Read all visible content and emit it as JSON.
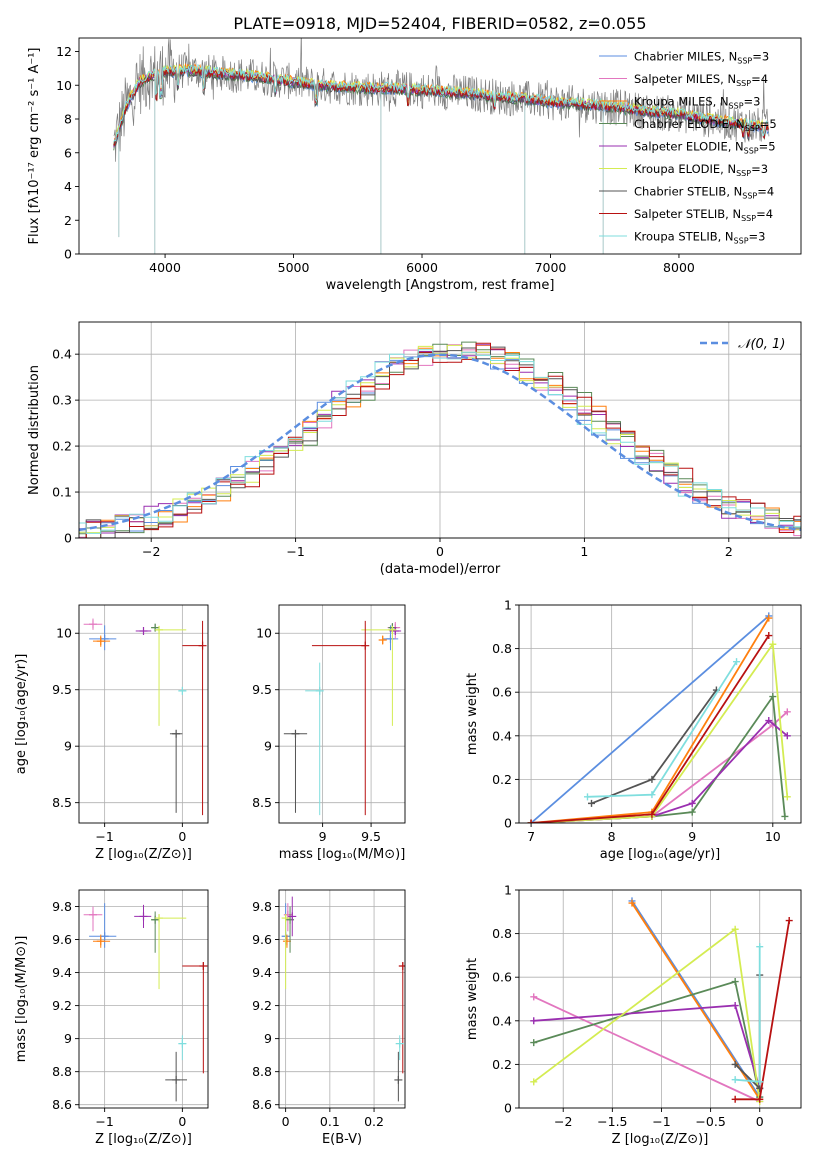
{
  "colors": {
    "chabrier_miles": "#5b8ee0",
    "salpeter_miles": "#e276bf",
    "kroupa_miles": "#ff7f0e",
    "chabrier_elodie": "#5a8a58",
    "salpeter_elodie": "#9a2fb0",
    "kroupa_elodie": "#d4ec52",
    "chabrier_stelib": "#545454",
    "salpeter_stelib": "#b81111",
    "kroupa_stelib": "#7fdede",
    "gray_spectrum": "#7f7f7f"
  },
  "chart_data": [
    {
      "id": "spectrum",
      "type": "line",
      "title": "PLATE=0918, MJD=52404, FIBERID=0582, z=0.055",
      "xlabel": "wavelength [Angstrom, rest frame]",
      "ylabel": "Flux [fλ10⁻¹⁷ erg cm⁻² s⁻¹ A⁻¹]",
      "xlim": [
        3330,
        8950
      ],
      "ylim": [
        0,
        12.8
      ],
      "xticks": [
        4000,
        5000,
        6000,
        7000,
        8000
      ],
      "yticks": [
        0,
        2,
        4,
        6,
        8,
        10,
        12
      ],
      "continuum": [
        [
          3600,
          6.4
        ],
        [
          3640,
          7.4
        ],
        [
          3700,
          8.8
        ],
        [
          3800,
          10.2
        ],
        [
          3900,
          10.6
        ],
        [
          4000,
          10.8
        ],
        [
          4200,
          10.9
        ],
        [
          4400,
          10.7
        ],
        [
          4600,
          10.6
        ],
        [
          4800,
          10.4
        ],
        [
          5000,
          10.2
        ],
        [
          5200,
          10.0
        ],
        [
          5400,
          9.9
        ],
        [
          5600,
          9.8
        ],
        [
          5800,
          9.8
        ],
        [
          6000,
          9.7
        ],
        [
          6200,
          9.6
        ],
        [
          6400,
          9.5
        ],
        [
          6600,
          9.3
        ],
        [
          6800,
          9.2
        ],
        [
          7000,
          9.0
        ],
        [
          7200,
          8.9
        ],
        [
          7400,
          8.8
        ],
        [
          7600,
          8.6
        ],
        [
          7800,
          8.4
        ],
        [
          8000,
          8.3
        ],
        [
          8200,
          8.0
        ],
        [
          8400,
          7.8
        ],
        [
          8600,
          7.6
        ],
        [
          8700,
          7.5
        ]
      ],
      "legend": [
        {
          "label": "Chabrier MILES, N",
          "sub": "SSP",
          "n": "=3",
          "color_key": "chabrier_miles"
        },
        {
          "label": "Salpeter MILES, N",
          "sub": "SSP",
          "n": "=4",
          "color_key": "salpeter_miles"
        },
        {
          "label": "Kroupa MILES, N",
          "sub": "SSP",
          "n": "=3",
          "color_key": "kroupa_miles"
        },
        {
          "label": "Chabrier ELODIE, N",
          "sub": "SSP",
          "n": "=5",
          "color_key": "chabrier_elodie"
        },
        {
          "label": "Salpeter ELODIE, N",
          "sub": "SSP",
          "n": "=5",
          "color_key": "salpeter_elodie"
        },
        {
          "label": "Kroupa ELODIE, N",
          "sub": "SSP",
          "n": "=3",
          "color_key": "kroupa_elodie"
        },
        {
          "label": "Chabrier STELIB, N",
          "sub": "SSP",
          "n": "=4",
          "color_key": "chabrier_stelib"
        },
        {
          "label": "Salpeter STELIB, N",
          "sub": "SSP",
          "n": "=4",
          "color_key": "salpeter_stelib"
        },
        {
          "label": "Kroupa STELIB, N",
          "sub": "SSP",
          "n": "=3",
          "color_key": "kroupa_stelib"
        }
      ]
    },
    {
      "id": "residuals",
      "type": "line",
      "xlabel": "(data-model)/error",
      "ylabel": "Normed distribution",
      "xlim": [
        -2.5,
        2.5
      ],
      "ylim": [
        0,
        0.47
      ],
      "xticks": [
        -2,
        -1,
        0,
        1,
        2
      ],
      "yticks": [
        0.0,
        0.1,
        0.2,
        0.3,
        0.4
      ],
      "legend": "𝒩(0, 1)",
      "gaussian": {
        "mean": 0,
        "sigma": 1
      }
    },
    {
      "id": "age_vs_Z",
      "type": "scatter",
      "xlabel": "Z [log₁₀(Z/Z⊙)]",
      "ylabel": "age  [log₁₀(age/yr)]",
      "xlim": [
        -1.33,
        0.33
      ],
      "ylim": [
        8.32,
        10.25
      ],
      "xticks": [
        -1,
        0
      ],
      "yticks": [
        8.5,
        9.0,
        9.5,
        10.0
      ],
      "points": [
        {
          "k": "chabrier_miles",
          "x": -1.0,
          "y": 9.95,
          "ex": [
            0.2,
            0.15
          ],
          "ey": [
            0.1,
            0.12
          ]
        },
        {
          "k": "salpeter_miles",
          "x": -1.15,
          "y": 10.08,
          "ex": [
            0.12,
            0.12
          ],
          "ey": [
            0.05,
            0.05
          ]
        },
        {
          "k": "kroupa_miles",
          "x": -1.05,
          "y": 9.93,
          "ex": [
            0.1,
            0.12
          ],
          "ey": [
            0.05,
            0.05
          ]
        },
        {
          "k": "chabrier_elodie",
          "x": -0.35,
          "y": 10.05,
          "ex": [
            0.05,
            0.05
          ],
          "ey": [
            0.03,
            0.03
          ]
        },
        {
          "k": "salpeter_elodie",
          "x": -0.5,
          "y": 10.02,
          "ex": [
            0.1,
            0.1
          ],
          "ey": [
            0.02,
            0.02
          ]
        },
        {
          "k": "kroupa_elodie",
          "x": -0.3,
          "y": 10.03,
          "ex": [
            0.02,
            0.35
          ],
          "ey": [
            0.85,
            0.0
          ]
        },
        {
          "k": "chabrier_stelib",
          "x": -0.08,
          "y": 9.11,
          "ex": [
            0.08,
            0.08
          ],
          "ey": [
            0.7,
            0.0
          ]
        },
        {
          "k": "salpeter_stelib",
          "x": 0.26,
          "y": 9.89,
          "ex": [
            0.26,
            0.0
          ],
          "ey": [
            1.5,
            0.22
          ]
        },
        {
          "k": "kroupa_stelib",
          "x": 0.0,
          "y": 9.49,
          "ex": [
            0.05,
            0.05
          ],
          "ey": [
            0.0,
            0.0
          ]
        }
      ]
    },
    {
      "id": "age_vs_mass",
      "type": "scatter",
      "xlabel": "mass [log₁₀(M/M⊙)]",
      "xlim": [
        8.55,
        9.85
      ],
      "ylim": [
        8.32,
        10.25
      ],
      "xticks": [
        9.0,
        9.5
      ],
      "yticks": [
        8.5,
        9.0,
        9.5,
        10.0
      ],
      "points": [
        {
          "k": "chabrier_miles",
          "x": 9.7,
          "y": 9.95,
          "ex": [
            0.08,
            0.08
          ],
          "ey": [
            0.1,
            0.12
          ]
        },
        {
          "k": "salpeter_miles",
          "x": 9.75,
          "y": 10.05,
          "ex": [
            0.08,
            0.05
          ],
          "ey": [
            0.1,
            0.05
          ]
        },
        {
          "k": "kroupa_miles",
          "x": 9.62,
          "y": 9.94,
          "ex": [
            0.04,
            0.04
          ],
          "ey": [
            0.04,
            0.04
          ]
        },
        {
          "k": "chabrier_elodie",
          "x": 9.72,
          "y": 10.05,
          "ex": [
            0.03,
            0.03
          ],
          "ey": [
            0.04,
            0.04
          ]
        },
        {
          "k": "salpeter_elodie",
          "x": 9.75,
          "y": 10.02,
          "ex": [
            0.06,
            0.06
          ],
          "ey": [
            0.02,
            0.02
          ]
        },
        {
          "k": "kroupa_elodie",
          "x": 9.72,
          "y": 10.03,
          "ex": [
            0.32,
            0.0
          ],
          "ey": [
            0.85,
            0.0
          ]
        },
        {
          "k": "chabrier_stelib",
          "x": 8.72,
          "y": 9.11,
          "ex": [
            0.12,
            0.12
          ],
          "ey": [
            0.7,
            0.0
          ]
        },
        {
          "k": "salpeter_stelib",
          "x": 9.44,
          "y": 9.89,
          "ex": [
            0.55,
            0.0
          ],
          "ey": [
            1.5,
            0.22
          ]
        },
        {
          "k": "kroupa_stelib",
          "x": 8.97,
          "y": 9.49,
          "ex": [
            0.15,
            0.0
          ],
          "ey": [
            1.1,
            0.25
          ]
        }
      ]
    },
    {
      "id": "massweight_vs_age",
      "type": "line",
      "xlabel": "age  [log₁₀(age/yr)]",
      "ylabel": "mass weight",
      "xlim": [
        6.85,
        10.35
      ],
      "ylim": [
        0,
        1.0
      ],
      "xticks": [
        7,
        8,
        9,
        10
      ],
      "yticks": [
        0.0,
        0.2,
        0.4,
        0.6,
        0.8,
        1.0
      ],
      "series": [
        {
          "k": "chabrier_miles",
          "x": [
            7.0,
            9.95
          ],
          "y": [
            0.0,
            0.95
          ]
        },
        {
          "k": "salpeter_miles",
          "x": [
            7.0,
            8.5,
            10.0,
            10.18
          ],
          "y": [
            0.0,
            0.03,
            0.45,
            0.51
          ]
        },
        {
          "k": "kroupa_miles",
          "x": [
            7.0,
            8.5,
            9.95
          ],
          "y": [
            0.0,
            0.05,
            0.94
          ]
        },
        {
          "k": "chabrier_elodie",
          "x": [
            7.0,
            8.5,
            9.0,
            10.0,
            10.15
          ],
          "y": [
            0.0,
            0.03,
            0.05,
            0.58,
            0.03
          ]
        },
        {
          "k": "salpeter_elodie",
          "x": [
            7.0,
            8.5,
            9.0,
            9.95,
            10.18
          ],
          "y": [
            0.0,
            0.03,
            0.09,
            0.47,
            0.4
          ]
        },
        {
          "k": "kroupa_elodie",
          "x": [
            7.0,
            8.5,
            10.0,
            10.18
          ],
          "y": [
            0.0,
            0.03,
            0.82,
            0.12
          ]
        },
        {
          "k": "chabrier_stelib",
          "x": [
            7.75,
            8.5,
            9.3
          ],
          "y": [
            0.09,
            0.2,
            0.61
          ]
        },
        {
          "k": "salpeter_stelib",
          "x": [
            7.0,
            8.5,
            9.95
          ],
          "y": [
            0.0,
            0.04,
            0.86
          ]
        },
        {
          "k": "kroupa_stelib",
          "x": [
            7.7,
            8.5,
            9.55
          ],
          "y": [
            0.12,
            0.13,
            0.74
          ]
        }
      ]
    },
    {
      "id": "mass_vs_Z",
      "type": "scatter",
      "xlabel": "Z [log₁₀(Z/Z⊙)]",
      "ylabel": "mass [log₁₀(M/M⊙)]",
      "xlim": [
        -1.33,
        0.33
      ],
      "ylim": [
        8.58,
        9.9
      ],
      "xticks": [
        -1,
        0
      ],
      "yticks": [
        8.6,
        8.8,
        9.0,
        9.2,
        9.4,
        9.6,
        9.8
      ],
      "points": [
        {
          "k": "chabrier_miles",
          "x": -1.0,
          "y": 9.62,
          "ex": [
            0.2,
            0.15
          ],
          "ey": [
            0.07,
            0.2
          ]
        },
        {
          "k": "salpeter_miles",
          "x": -1.15,
          "y": 9.75,
          "ex": [
            0.12,
            0.12
          ],
          "ey": [
            0.1,
            0.05
          ]
        },
        {
          "k": "kroupa_miles",
          "x": -1.05,
          "y": 9.59,
          "ex": [
            0.1,
            0.12
          ],
          "ey": [
            0.04,
            0.04
          ]
        },
        {
          "k": "chabrier_elodie",
          "x": -0.35,
          "y": 9.72,
          "ex": [
            0.05,
            0.05
          ],
          "ey": [
            0.2,
            0.05
          ]
        },
        {
          "k": "salpeter_elodie",
          "x": -0.5,
          "y": 9.74,
          "ex": [
            0.12,
            0.1
          ],
          "ey": [
            0.07,
            0.07
          ]
        },
        {
          "k": "kroupa_elodie",
          "x": -0.3,
          "y": 9.73,
          "ex": [
            0.02,
            0.35
          ],
          "ey": [
            0.43,
            0.0
          ]
        },
        {
          "k": "chabrier_stelib",
          "x": -0.08,
          "y": 8.75,
          "ex": [
            0.14,
            0.14
          ],
          "ey": [
            0.13,
            0.17
          ]
        },
        {
          "k": "salpeter_stelib",
          "x": 0.27,
          "y": 9.44,
          "ex": [
            0.27,
            0.0
          ],
          "ey": [
            0.65,
            0.02
          ]
        },
        {
          "k": "kroupa_stelib",
          "x": 0.0,
          "y": 8.97,
          "ex": [
            0.05,
            0.05
          ],
          "ey": [
            0.1,
            0.05
          ]
        }
      ]
    },
    {
      "id": "mass_vs_EBV",
      "type": "scatter",
      "xlabel": "E(B-V)",
      "xlim": [
        -0.015,
        0.27
      ],
      "ylim": [
        8.58,
        9.9
      ],
      "xticks": [
        0.0,
        0.1,
        0.2
      ],
      "yticks": [
        8.6,
        8.8,
        9.0,
        9.2,
        9.4,
        9.6,
        9.8
      ],
      "points": [
        {
          "k": "chabrier_miles",
          "x": 0.0,
          "y": 9.62,
          "ex": [
            0,
            0
          ],
          "ey": [
            0.05,
            0.2
          ]
        },
        {
          "k": "salpeter_miles",
          "x": 0.005,
          "y": 9.75,
          "ex": [
            0,
            0
          ],
          "ey": [
            0.1,
            0.07
          ]
        },
        {
          "k": "kroupa_miles",
          "x": 0.003,
          "y": 9.59,
          "ex": [
            0,
            0
          ],
          "ey": [
            0.04,
            0.04
          ]
        },
        {
          "k": "chabrier_elodie",
          "x": 0.01,
          "y": 9.72,
          "ex": [
            0,
            0
          ],
          "ey": [
            0.2,
            0.08
          ]
        },
        {
          "k": "salpeter_elodie",
          "x": 0.015,
          "y": 9.74,
          "ex": [
            0,
            0
          ],
          "ey": [
            0.12,
            0.12
          ]
        },
        {
          "k": "kroupa_elodie",
          "x": 0.0,
          "y": 9.73,
          "ex": [
            0,
            0
          ],
          "ey": [
            0.43,
            0.0
          ]
        },
        {
          "k": "chabrier_stelib",
          "x": 0.255,
          "y": 8.75,
          "ex": [
            0,
            0
          ],
          "ey": [
            0.13,
            0.17
          ]
        },
        {
          "k": "salpeter_stelib",
          "x": 0.265,
          "y": 9.44,
          "ex": [
            0,
            0
          ],
          "ey": [
            0.65,
            0.02
          ]
        },
        {
          "k": "kroupa_stelib",
          "x": 0.258,
          "y": 8.97,
          "ex": [
            0,
            0
          ],
          "ey": [
            0.1,
            0.05
          ]
        }
      ]
    },
    {
      "id": "massweight_vs_Z",
      "type": "line",
      "xlabel": "Z [log₁₀(Z/Z⊙)]",
      "ylabel": "mass weight",
      "xlim": [
        -2.45,
        0.42
      ],
      "ylim": [
        0,
        1.0
      ],
      "xticks": [
        -2.0,
        -1.5,
        -1.0,
        -0.5,
        0.0
      ],
      "yticks": [
        0.0,
        0.2,
        0.4,
        0.6,
        0.8,
        1.0
      ],
      "series": [
        {
          "k": "chabrier_miles",
          "x": [
            -1.3,
            0.0
          ],
          "y": [
            0.95,
            0.05
          ]
        },
        {
          "k": "salpeter_miles",
          "x": [
            -2.3,
            0.0
          ],
          "y": [
            0.51,
            0.03
          ]
        },
        {
          "k": "kroupa_miles",
          "x": [
            -1.3,
            0.0
          ],
          "y": [
            0.94,
            0.04
          ]
        },
        {
          "k": "chabrier_elodie",
          "x": [
            -2.3,
            -0.25,
            0.0
          ],
          "y": [
            0.3,
            0.58,
            0.05
          ]
        },
        {
          "k": "salpeter_elodie",
          "x": [
            -2.3,
            -0.25,
            0.0
          ],
          "y": [
            0.4,
            0.47,
            0.09
          ]
        },
        {
          "k": "kroupa_elodie",
          "x": [
            -2.3,
            -0.25,
            0.0
          ],
          "y": [
            0.12,
            0.82,
            0.03
          ]
        },
        {
          "k": "chabrier_stelib",
          "x": [
            -0.25,
            0.0,
            0.0
          ],
          "y": [
            0.2,
            0.09,
            0.61
          ]
        },
        {
          "k": "salpeter_stelib",
          "x": [
            -0.25,
            0.0,
            0.3
          ],
          "y": [
            0.04,
            0.04,
            0.86
          ]
        },
        {
          "k": "kroupa_stelib",
          "x": [
            -0.25,
            0.0,
            0.0
          ],
          "y": [
            0.13,
            0.12,
            0.74
          ]
        }
      ]
    }
  ]
}
